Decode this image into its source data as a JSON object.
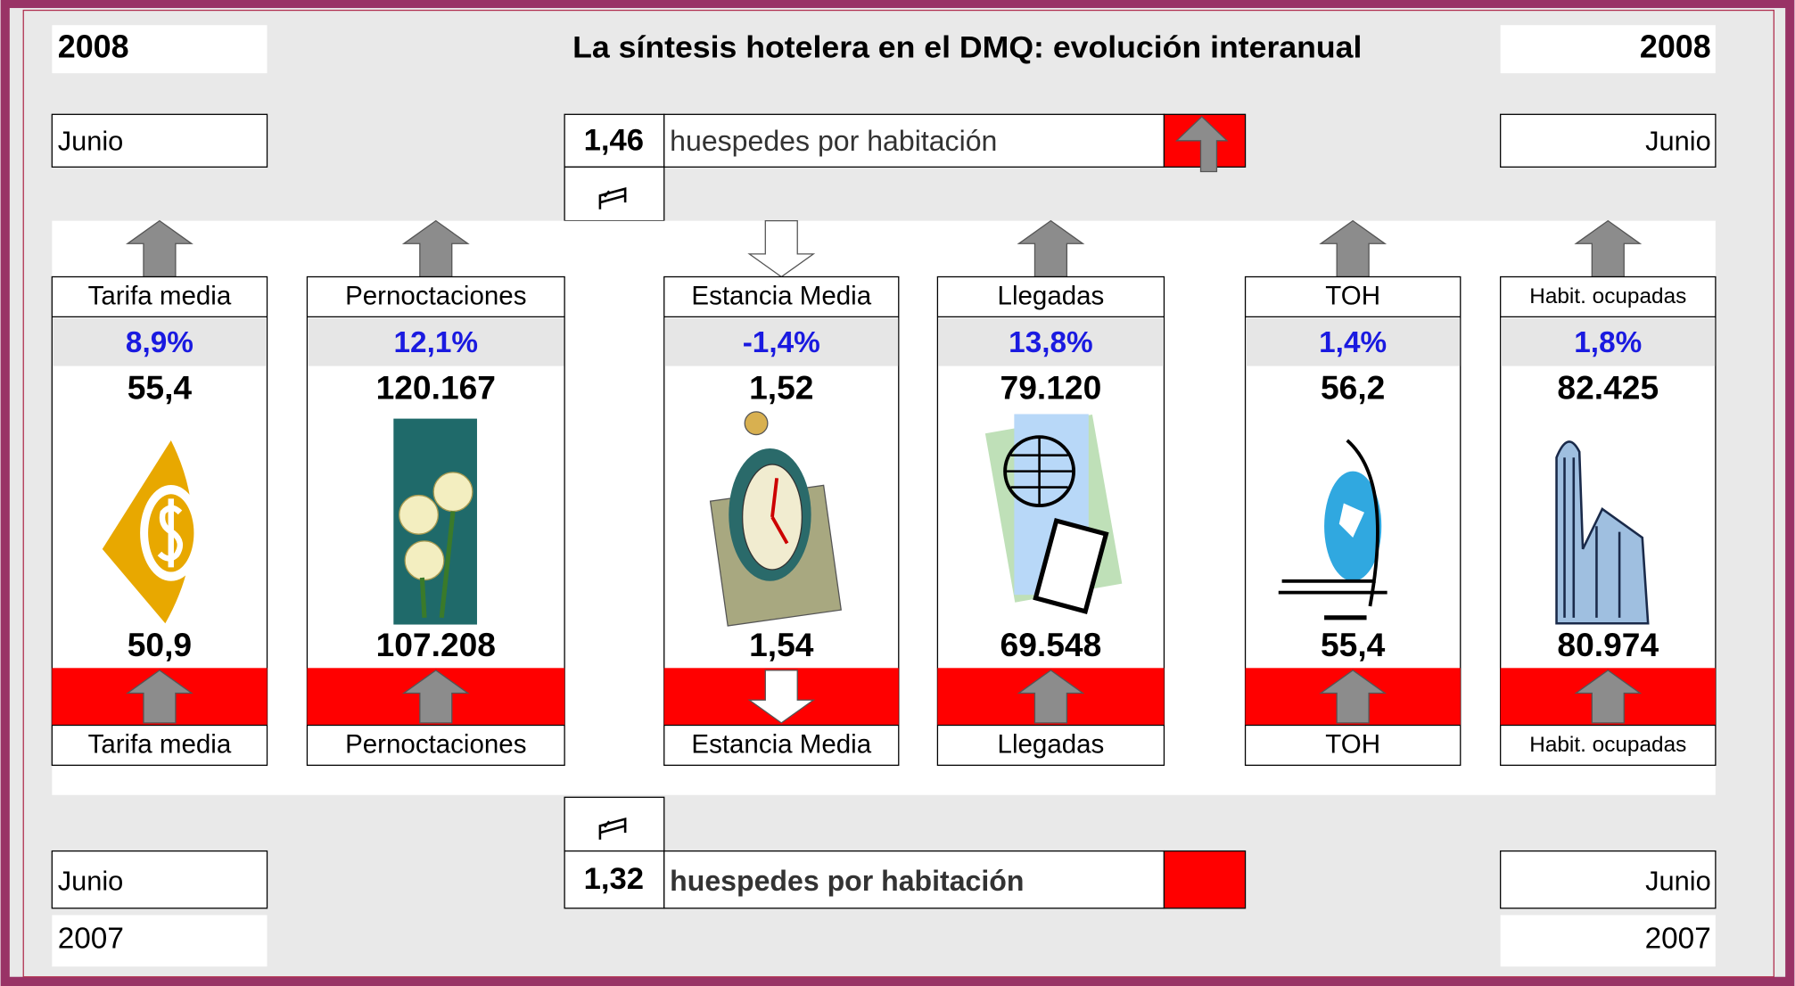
{
  "header": {
    "year_left": "2008",
    "title": "La síntesis  hotelera en el DMQ: evolución interanual",
    "year_right": "2008"
  },
  "top": {
    "month_left": "Junio",
    "ratio": "1,46",
    "ratio_label": "huespedes  por habitación",
    "month_right": "Junio"
  },
  "cards": [
    {
      "label_top": "Tarifa media",
      "change": "8,9%",
      "current": "55,4",
      "previous": "50,9",
      "label_bottom": "Tarifa media"
    },
    {
      "label_top": "Pernoctaciones",
      "change": "12,1%",
      "current": "120.167",
      "previous": "107.208",
      "label_bottom": "Pernoctaciones"
    },
    {
      "label_top": "Estancia Media",
      "change": "-1,4%",
      "current": "1,52",
      "previous": "1,54",
      "label_bottom": "Estancia Media"
    },
    {
      "label_top": "Llegadas",
      "change": "13,8%",
      "current": "79.120",
      "previous": "69.548",
      "label_bottom": "Llegadas"
    },
    {
      "label_top": "TOH",
      "change": "1,4%",
      "current": "56,2",
      "previous": "55,4",
      "label_bottom": "TOH"
    },
    {
      "label_top": "Habit. ocupadas",
      "change": "1,8%",
      "current": "82.425",
      "previous": "80.974",
      "label_bottom": "Habit. ocupadas"
    }
  ],
  "bottom": {
    "month_left": "Junio",
    "ratio": "1,32",
    "ratio_label": "huespedes  por habitación",
    "month_right": "Junio",
    "year_left": "2007",
    "year_right": "2007"
  }
}
